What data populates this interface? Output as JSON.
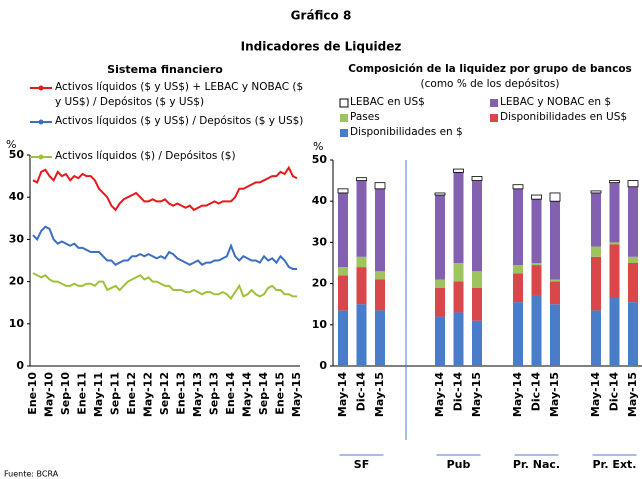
{
  "title": "Gráfico 8",
  "subtitle": "Indicadores de Liquidez",
  "source": "Fuente: BCRA",
  "chart_data": [
    {
      "type": "line",
      "title": "Sistema financiero",
      "ylabel": "%",
      "categories": [
        "Ene-10",
        null,
        null,
        null,
        "May-10",
        null,
        null,
        null,
        "Sep-10",
        null,
        null,
        null,
        "Ene-11",
        null,
        null,
        null,
        "May-11",
        null,
        null,
        null,
        "Sep-11",
        null,
        null,
        null,
        "Ene-12",
        null,
        null,
        null,
        "May-12",
        null,
        null,
        null,
        "Sep-12",
        null,
        null,
        null,
        "Ene-13",
        null,
        null,
        null,
        "May-13",
        null,
        null,
        null,
        "Sep-13",
        null,
        null,
        null,
        "Ene-14",
        null,
        null,
        null,
        "May-14",
        null,
        null,
        null,
        "Sep-14",
        null,
        null,
        null,
        "Ene-15",
        null,
        null,
        null,
        "May-15"
      ],
      "ylim": [
        0,
        50
      ],
      "yticks": [
        0,
        10,
        20,
        30,
        40,
        50
      ],
      "series": [
        {
          "name": "Activos líquidos ($ y US$) + LEBAC y NOBAC ($ y US$) / Depósitos ($ y US$)",
          "color": "#e8191c",
          "values": [
            44,
            43.5,
            46,
            46.5,
            45,
            44,
            46,
            45,
            45.5,
            44,
            45,
            44.5,
            45.5,
            45,
            45,
            44,
            42,
            41,
            40,
            38,
            37,
            38.5,
            39.5,
            40,
            40.5,
            41,
            40,
            39,
            39,
            39.5,
            39,
            39,
            39.5,
            38.5,
            38,
            38.5,
            38,
            37.5,
            38,
            37,
            37.5,
            38,
            38,
            38.5,
            39,
            38.5,
            39,
            39,
            39,
            40,
            42,
            42,
            42.5,
            43,
            43.5,
            43.5,
            44,
            44.5,
            45,
            45,
            46,
            45.5,
            47,
            45,
            44.5
          ]
        },
        {
          "name": "Activos líquidos ($ y US$) / Depósitos ($ y US$)",
          "color": "#3b6fc4",
          "values": [
            31,
            30,
            32,
            33,
            32.5,
            30,
            29,
            29.5,
            29,
            28.5,
            29,
            28,
            28,
            27.5,
            27,
            27,
            27,
            26,
            25,
            25,
            24,
            24.5,
            25,
            25,
            26,
            26,
            26.5,
            26,
            26.5,
            26,
            25.5,
            26,
            25.5,
            27,
            26.5,
            25.5,
            25,
            24.5,
            24,
            24.5,
            25,
            24,
            24.5,
            24.5,
            25,
            25,
            25.5,
            26,
            28.5,
            26,
            25,
            26,
            25.5,
            25,
            25,
            24.5,
            26,
            25,
            25.5,
            24.5,
            26,
            25,
            23.5,
            23,
            23
          ]
        },
        {
          "name": "Activos líquidos ($) / Depósitos ($)",
          "color": "#9dc33a",
          "values": [
            22,
            21.5,
            21,
            21.5,
            20.5,
            20,
            20,
            19.5,
            19,
            19,
            19.5,
            19,
            19,
            19.5,
            19.5,
            19,
            20,
            20,
            18,
            18.5,
            19,
            18,
            19,
            20,
            20.5,
            21,
            21.5,
            20.5,
            21,
            20,
            20,
            19.5,
            19,
            19,
            18,
            18,
            18,
            17.5,
            17.5,
            18,
            17.5,
            17,
            17.5,
            17.5,
            17,
            17,
            17.5,
            17,
            16,
            17.5,
            19,
            16.5,
            17,
            18,
            17,
            16.5,
            17,
            18.5,
            19,
            18,
            18,
            17,
            17,
            16.5,
            16.5
          ]
        }
      ]
    },
    {
      "type": "stacked_bar",
      "title": "Composición de la liquidez por grupo de bancos",
      "subtitle": "(como % de los depósitos)",
      "ylabel": "%",
      "categories": [
        "May-14",
        "Dic-14",
        "May-15",
        "May-14",
        "Dic-14",
        "May-15",
        "May-14",
        "Dic-14",
        "May-15",
        "May-14",
        "Dic-14",
        "May-15"
      ],
      "groups": [
        "SF",
        "Pub",
        "Pr. Nac.",
        "Pr. Ext."
      ],
      "ylim": [
        0,
        50
      ],
      "yticks": [
        0,
        10,
        20,
        30,
        40,
        50
      ],
      "series": [
        {
          "name": "Disponibilidades en $",
          "color": "#4a7dc9",
          "values": [
            13.5,
            15,
            13.5,
            12,
            13,
            11,
            15.5,
            17,
            15,
            13.5,
            16.5,
            15.5
          ]
        },
        {
          "name": "Disponibilidades en US$",
          "color": "#d9474a",
          "values": [
            8.5,
            9,
            7.5,
            7,
            7.5,
            8,
            7,
            7.5,
            5.5,
            13,
            13,
            9.5
          ]
        },
        {
          "name": "Pases",
          "color": "#9dc45f",
          "values": [
            2,
            2.5,
            2,
            2,
            4.5,
            4,
            2,
            0.5,
            0.5,
            2.5,
            0.5,
            1.5
          ]
        },
        {
          "name": "LEBAC y NOBAC en $",
          "color": "#8461b0",
          "values": [
            18,
            18.5,
            20,
            20.5,
            22,
            22,
            18.5,
            15.5,
            19,
            13,
            14.5,
            17
          ]
        },
        {
          "name": "LEBAC en US$",
          "color": "#ffffff",
          "values": [
            1,
            0.7,
            1.5,
            0.5,
            0.8,
            1,
            1,
            1,
            2,
            0.5,
            0.5,
            1.5
          ]
        }
      ]
    }
  ]
}
